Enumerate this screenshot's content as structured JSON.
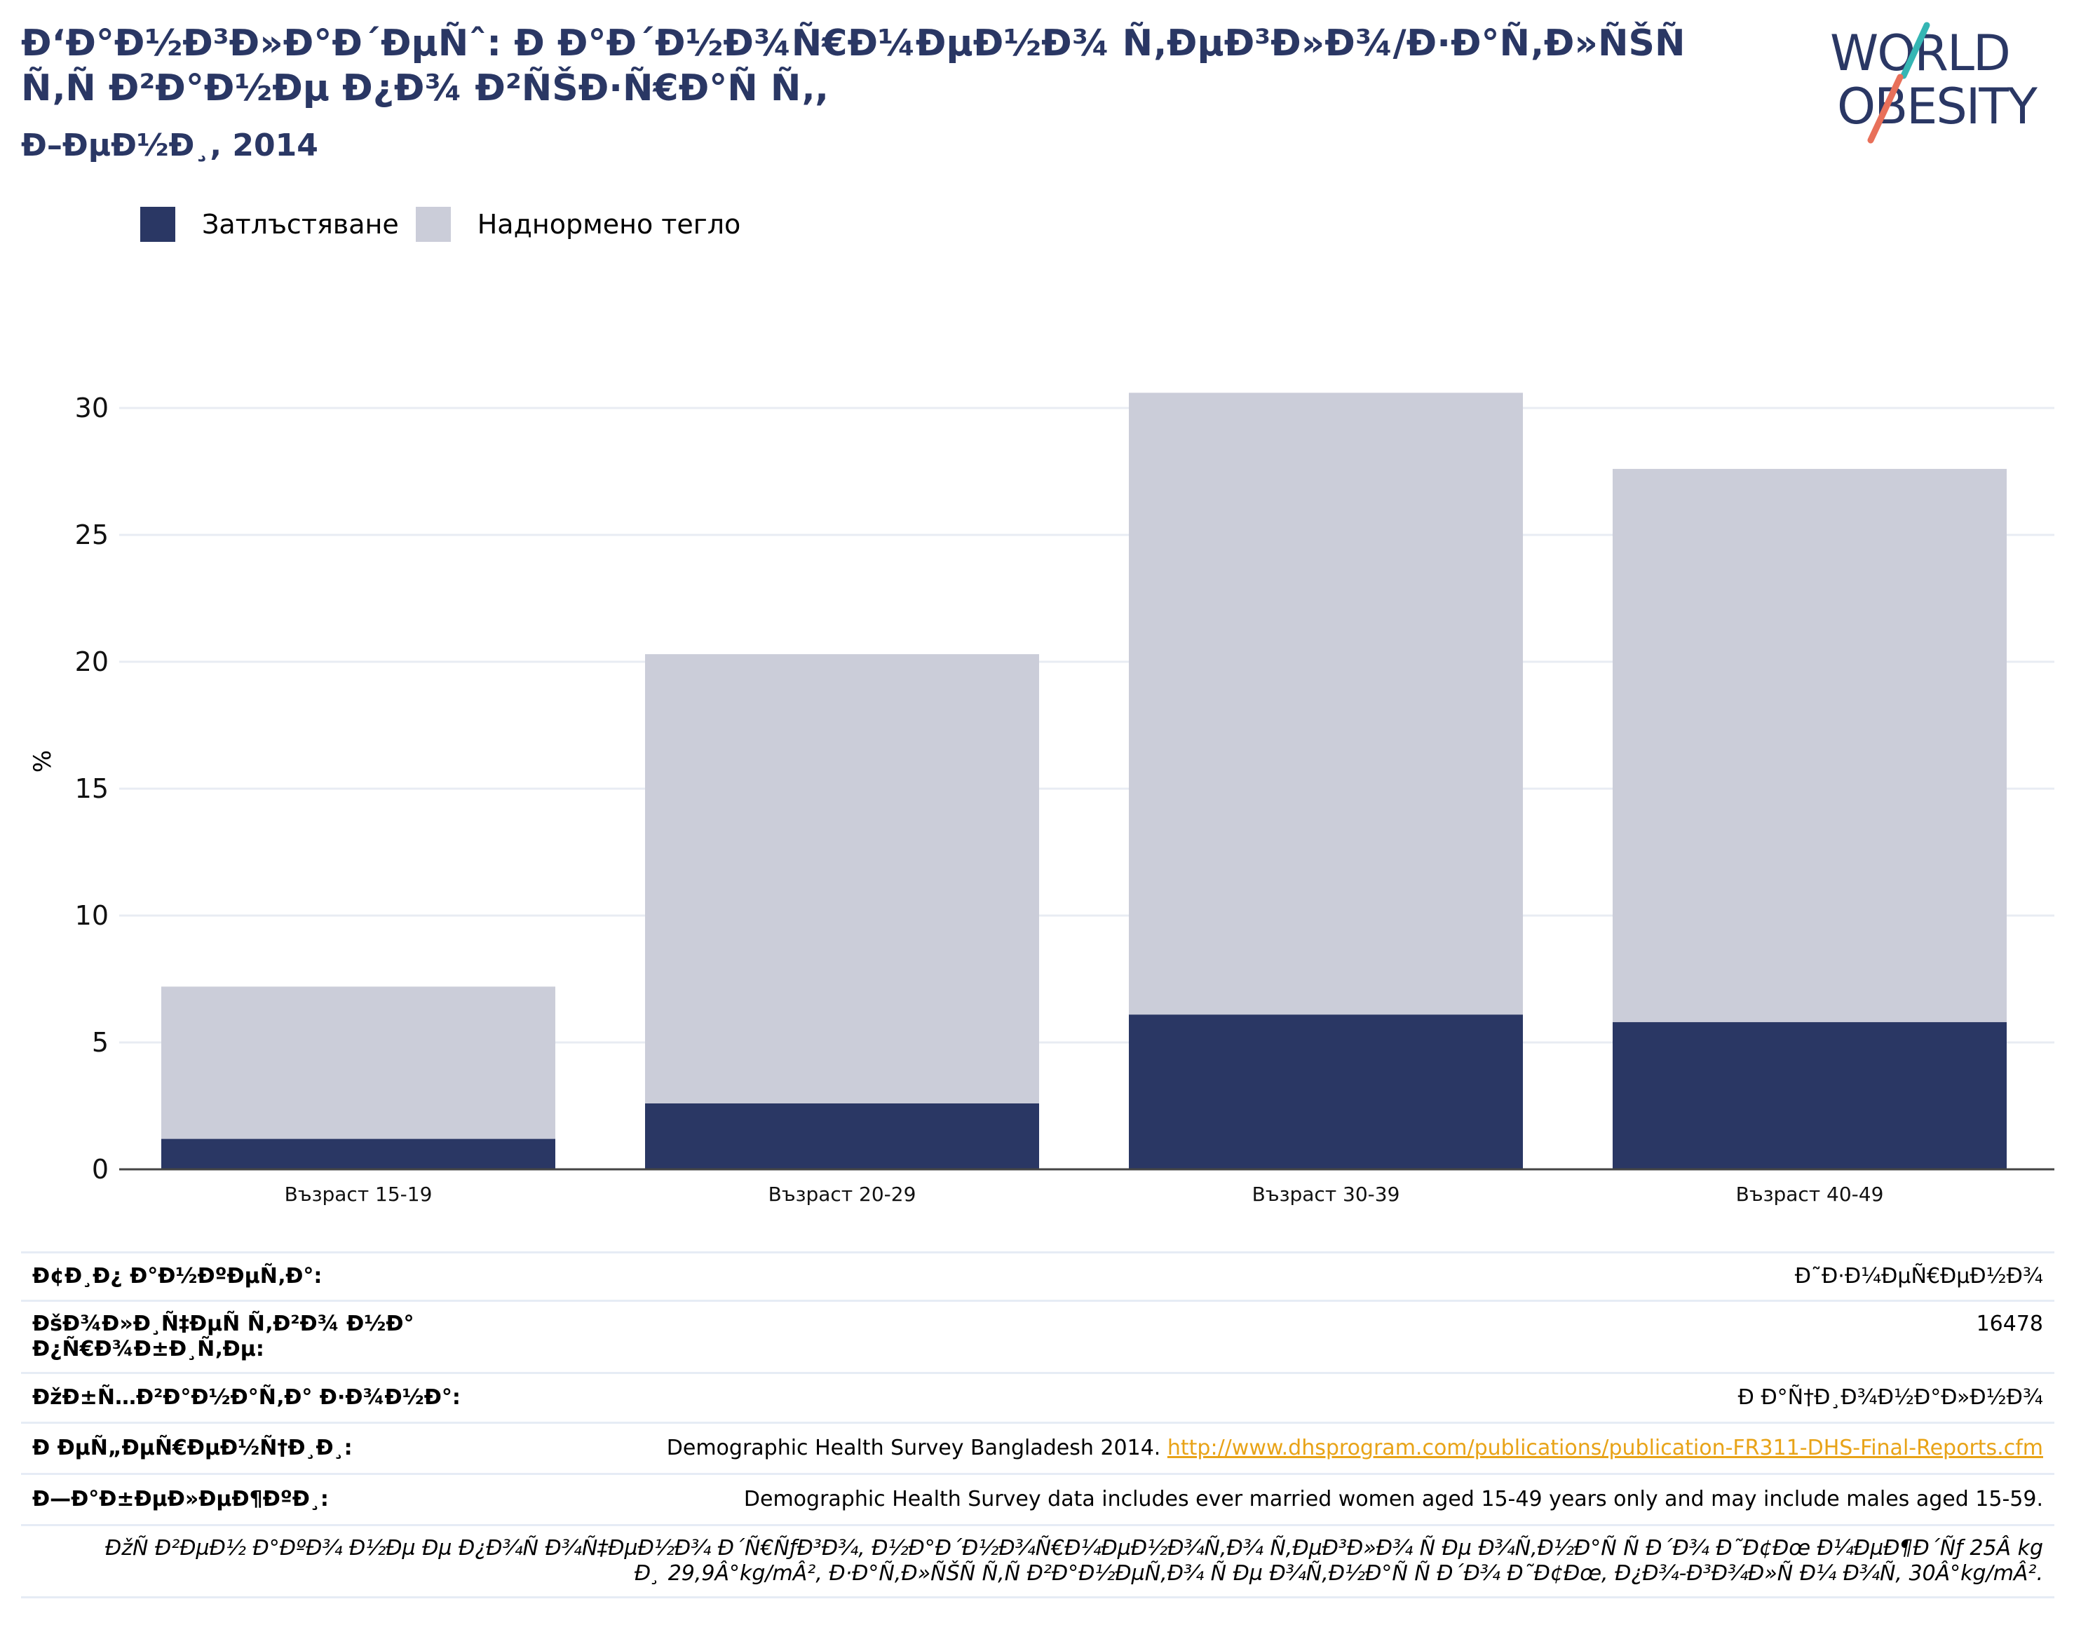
{
  "header": {
    "title": "Ð‘Ð°Ð½Ð³Ð»Ð°Ð´ÐµÑˆ: Ð Ð°Ð´Ð½Ð¾Ñ€Ð¼ÐµÐ½Ð¾ Ñ‚ÐµÐ³Ð»Ð¾/Ð·Ð°Ñ‚Ð»ÑŠÑ Ñ‚Ñ Ð²Ð°Ð½Ðµ Ð¿Ð¾ Ð²ÑŠÐ·Ñ€Ð°Ñ Ñ‚,",
    "subtitle": "Ð–ÐµÐ½Ð¸, 2014"
  },
  "logo": {
    "line1": "WORLD",
    "line2": "OBESITY"
  },
  "colors": {
    "obesity": "#2a3764",
    "overweight": "#cbcdd9",
    "title": "#2a3764",
    "link": "#e8a317"
  },
  "chart_data": {
    "type": "bar",
    "stacked": true,
    "categories": [
      "Възраст 15-19",
      "Възраст 20-29",
      "Възраст 30-39",
      "Възраст 40-49"
    ],
    "series": [
      {
        "name": "Затлъстяване",
        "values": [
          1.2,
          2.6,
          6.1,
          5.8
        ],
        "color": "#2a3764"
      },
      {
        "name": "Наднормено тегло",
        "values": [
          6.0,
          17.7,
          24.5,
          21.8
        ],
        "color": "#cbcdd9"
      }
    ],
    "ylabel": "%",
    "ylim": [
      0,
      32
    ],
    "yticks": [
      0,
      5,
      10,
      15,
      20,
      25,
      30
    ],
    "grid": true,
    "legend": "top-left"
  },
  "table": {
    "rows": [
      {
        "key": "Ð¢Ð¸Ð¿ Ð°Ð½ÐºÐµÑ‚Ð°:",
        "value": "Ð˜Ð·Ð¼ÐµÑ€ÐµÐ½Ð¾"
      },
      {
        "key": "ÐšÐ¾Ð»Ð¸Ñ‡ÐµÑ Ñ‚Ð²Ð¾ Ð½Ð° Ð¿Ñ€Ð¾Ð±Ð¸Ñ‚Ðµ:",
        "value": "16478"
      },
      {
        "key": "ÐžÐ±Ñ…Ð²Ð°Ð½Ð°Ñ‚Ð° Ð·Ð¾Ð½Ð°:",
        "value": "Ð Ð°Ñ†Ð¸Ð¾Ð½Ð°Ð»Ð½Ð¾"
      },
      {
        "key": "Ð ÐµÑ„ÐµÑ€ÐµÐ½Ñ†Ð¸Ð¸:",
        "value": "Demographic Health Survey Bangladesh 2014.",
        "link": "http://www.dhsprogram.com/publications/publication-FR311-DHS-Final-Reports.cfm"
      },
      {
        "key": "Ð—Ð°Ð±ÐµÐ»ÐµÐ¶ÐºÐ¸:",
        "value": "Demographic Health Survey data includes ever married women aged 15-49 years only and may include males aged 15-59."
      }
    ],
    "note": "ÐžÑ Ð²ÐµÐ½ Ð°ÐºÐ¾ Ð½Ðµ Ðµ Ð¿Ð¾Ñ Ð¾Ñ‡ÐµÐ½Ð¾ Ð´Ñ€ÑƒÐ³Ð¾, Ð½Ð°Ð´Ð½Ð¾Ñ€Ð¼ÐµÐ½Ð¾Ñ‚Ð¾ Ñ‚ÐµÐ³Ð»Ð¾ Ñ Ðµ Ð¾Ñ‚Ð½Ð°Ñ Ñ  Ð´Ð¾ Ð˜Ð¢Ðœ Ð¼ÐµÐ¶Ð´Ñƒ 25Â kg Ð¸ 29,9Â°kg/mÂ², Ð·Ð°Ñ‚Ð»ÑŠÑ Ñ‚Ñ Ð²Ð°Ð½ÐµÑ‚Ð¾ Ñ Ðµ Ð¾Ñ‚Ð½Ð°Ñ Ñ  Ð´Ð¾ Ð˜Ð¢Ðœ, Ð¿Ð¾-Ð³Ð¾Ð»Ñ Ð¼ Ð¾Ñ‚ 30Â°kg/mÂ²."
  }
}
